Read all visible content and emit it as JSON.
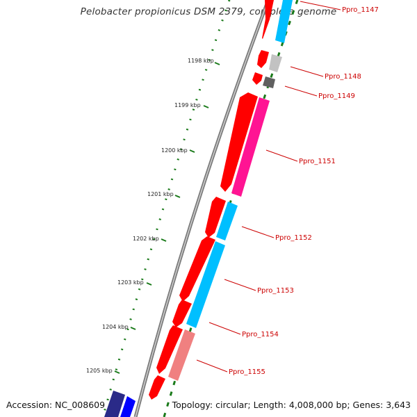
{
  "title": "Pelobacter propionicus DSM 2379, complete genome",
  "footer": {
    "accession": "Accession: NC_008609",
    "topology": "Topology: circular; Length: 4,008,000 bp; Genes: 3,643"
  },
  "kbp_labels": [
    "1198 kbp",
    "1199 kbp",
    "1200 kbp",
    "1201 kbp",
    "1202 kbp",
    "1203 kbp",
    "1204 kbp",
    "1205 kbp"
  ],
  "gene_labels": [
    "Ppro_1147",
    "Ppro_1148",
    "Ppro_1149",
    "Ppro_1151",
    "Ppro_1152",
    "Ppro_1153",
    "Ppro_1154",
    "Ppro_1155"
  ],
  "colors": {
    "cds": "#ff0000",
    "cyan": "#00bfff",
    "magenta": "#ff1493",
    "salmon": "#f08080",
    "gray": "#b0b0b0",
    "darkgray": "#606060",
    "navy": "#2a2a88",
    "blue": "#0000ff",
    "tick": "#1a7a1a",
    "label": "#cc0000"
  }
}
